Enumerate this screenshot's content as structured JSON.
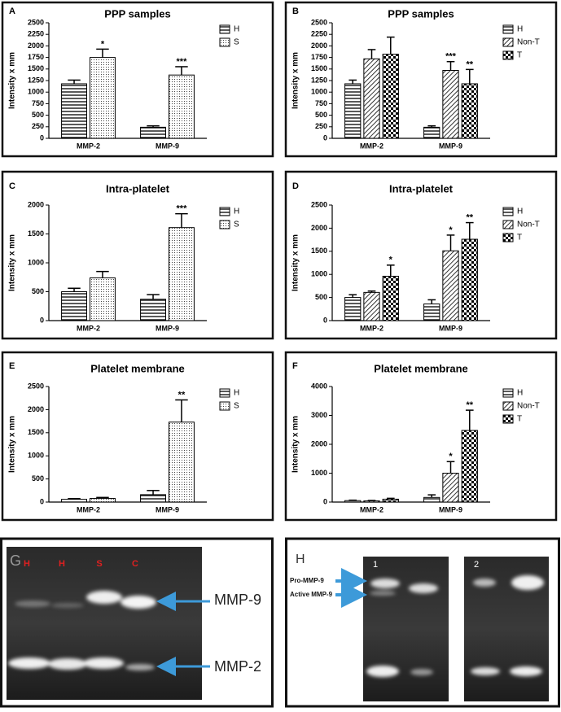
{
  "chart_data": [
    {
      "type": "bar",
      "panel": "A",
      "title": "PPP samples",
      "ylabel": "Intensity x mm",
      "categories": [
        "MMP-2",
        "MMP-9"
      ],
      "ylim": [
        0,
        2500
      ],
      "yticks": [
        0,
        250,
        500,
        750,
        1000,
        1250,
        1500,
        1750,
        2000,
        2250,
        2500
      ],
      "series": [
        {
          "name": "H",
          "color": "#000000",
          "pattern": "horizontal",
          "values": [
            1180,
            240
          ],
          "errors": [
            80,
            30
          ],
          "annotations": [
            null,
            null
          ]
        },
        {
          "name": "S",
          "color": "#000000",
          "pattern": "dots",
          "values": [
            1750,
            1370
          ],
          "errors": [
            180,
            180
          ],
          "annotations": [
            "*",
            "***"
          ]
        }
      ]
    },
    {
      "type": "bar",
      "panel": "B",
      "title": "PPP samples",
      "ylabel": "Intensity x mm",
      "categories": [
        "MMP-2",
        "MMP-9"
      ],
      "ylim": [
        0,
        2500
      ],
      "yticks": [
        0,
        250,
        500,
        750,
        1000,
        1250,
        1500,
        1750,
        2000,
        2250,
        2500
      ],
      "series": [
        {
          "name": "H",
          "color": "#000000",
          "pattern": "horizontal",
          "values": [
            1180,
            240
          ],
          "errors": [
            80,
            30
          ],
          "annotations": [
            null,
            null
          ]
        },
        {
          "name": "Non-T",
          "color": "#000000",
          "pattern": "diagonal",
          "values": [
            1720,
            1470
          ],
          "errors": [
            200,
            190
          ],
          "annotations": [
            null,
            "***"
          ]
        },
        {
          "name": "T",
          "color": "#000000",
          "pattern": "checker",
          "values": [
            1820,
            1180
          ],
          "errors": [
            370,
            310
          ],
          "annotations": [
            null,
            "**"
          ]
        }
      ]
    },
    {
      "type": "bar",
      "panel": "C",
      "title": "Intra-platelet",
      "ylabel": "Intensity x mm",
      "categories": [
        "MMP-2",
        "MMP-9"
      ],
      "ylim": [
        0,
        2000
      ],
      "yticks": [
        0,
        500,
        1000,
        1500,
        2000
      ],
      "series": [
        {
          "name": "H",
          "color": "#000000",
          "pattern": "horizontal",
          "values": [
            500,
            370
          ],
          "errors": [
            60,
            80
          ],
          "annotations": [
            null,
            null
          ]
        },
        {
          "name": "S",
          "color": "#000000",
          "pattern": "dots",
          "values": [
            740,
            1610
          ],
          "errors": [
            110,
            240
          ],
          "annotations": [
            null,
            "***"
          ]
        }
      ]
    },
    {
      "type": "bar",
      "panel": "D",
      "title": "Intra-platelet",
      "ylabel": "Intensity x mm",
      "categories": [
        "MMP-2",
        "MMP-9"
      ],
      "ylim": [
        0,
        2500
      ],
      "yticks": [
        0,
        500,
        1000,
        1500,
        2000,
        2500
      ],
      "series": [
        {
          "name": "H",
          "color": "#000000",
          "pattern": "horizontal",
          "values": [
            500,
            360
          ],
          "errors": [
            60,
            90
          ],
          "annotations": [
            null,
            null
          ]
        },
        {
          "name": "Non-T",
          "color": "#000000",
          "pattern": "diagonal",
          "values": [
            610,
            1510
          ],
          "errors": [
            30,
            340
          ],
          "annotations": [
            null,
            "*"
          ]
        },
        {
          "name": "T",
          "color": "#000000",
          "pattern": "checker",
          "values": [
            960,
            1760
          ],
          "errors": [
            240,
            360
          ],
          "annotations": [
            "*",
            "**"
          ]
        }
      ]
    },
    {
      "type": "bar",
      "panel": "E",
      "title": "Platelet membrane",
      "ylabel": "Intensity x mm",
      "categories": [
        "MMP-2",
        "MMP-9"
      ],
      "ylim": [
        0,
        2500
      ],
      "yticks": [
        0,
        500,
        1000,
        1500,
        2000,
        2500
      ],
      "series": [
        {
          "name": "H",
          "color": "#000000",
          "pattern": "horizontal",
          "values": [
            60,
            160
          ],
          "errors": [
            15,
            90
          ],
          "annotations": [
            null,
            null
          ]
        },
        {
          "name": "S",
          "color": "#000000",
          "pattern": "dots",
          "values": [
            80,
            1730
          ],
          "errors": [
            20,
            480
          ],
          "annotations": [
            null,
            "**"
          ]
        }
      ]
    },
    {
      "type": "bar",
      "panel": "F",
      "title": "Platelet membrane",
      "ylabel": "Intensity x mm",
      "categories": [
        "MMP-2",
        "MMP-9"
      ],
      "ylim": [
        0,
        4000
      ],
      "yticks": [
        0,
        1000,
        2000,
        3000,
        4000
      ],
      "series": [
        {
          "name": "H",
          "color": "#000000",
          "pattern": "horizontal",
          "values": [
            50,
            160
          ],
          "errors": [
            15,
            90
          ],
          "annotations": [
            null,
            null
          ]
        },
        {
          "name": "Non-T",
          "color": "#000000",
          "pattern": "diagonal",
          "values": [
            40,
            1000
          ],
          "errors": [
            15,
            400
          ],
          "annotations": [
            null,
            "*"
          ]
        },
        {
          "name": "T",
          "color": "#000000",
          "pattern": "checker",
          "values": [
            100,
            2480
          ],
          "errors": [
            30,
            700
          ],
          "annotations": [
            null,
            "**"
          ]
        }
      ]
    }
  ],
  "gels": [
    {
      "panel": "G",
      "lanes": [
        "H",
        "H",
        "S",
        "C"
      ],
      "markers": [
        "MMP-9",
        "MMP-2"
      ]
    },
    {
      "panel": "H",
      "lanes": [
        "1",
        "2"
      ],
      "markers": [
        "Pro-MMP-9",
        "Active MMP-9"
      ]
    }
  ]
}
